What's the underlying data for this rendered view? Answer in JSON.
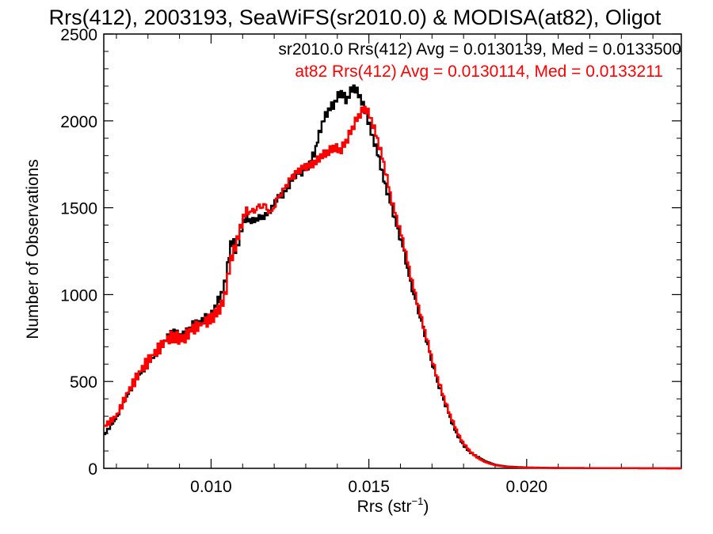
{
  "chart_data": {
    "type": "line",
    "title": "Rrs(412), 2003193, SeaWiFS(sr2010.0) & MODISA(at82), Oligot",
    "xlabel_main": "Rrs (str",
    "xlabel_sup": "−1",
    "xlabel_close": ")",
    "ylabel": "Number of Observations",
    "xlim": [
      0.0066,
      0.0249
    ],
    "ylim": [
      0,
      2500
    ],
    "x_ticks": [
      0.01,
      0.015,
      0.02
    ],
    "x_tick_labels": [
      "0.010",
      "0.015",
      "0.020"
    ],
    "y_ticks": [
      0,
      500,
      1000,
      1500,
      2000,
      2500
    ],
    "y_tick_labels": [
      "0",
      "500",
      "1000",
      "1500",
      "2000",
      "2500"
    ],
    "annotations": [
      {
        "text": "sr2010.0 Rrs(412) Avg = 0.0130139, Med = 0.0133500",
        "color": "#000000"
      },
      {
        "text": "at82 Rrs(412) Avg = 0.0130114, Med = 0.0133211",
        "color": "#ff0000"
      }
    ],
    "series": [
      {
        "name": "sr2010.0",
        "color": "#000000",
        "points": [
          [
            0.0066,
            190
          ],
          [
            0.007,
            290
          ],
          [
            0.0074,
            440
          ],
          [
            0.0078,
            560
          ],
          [
            0.0082,
            650
          ],
          [
            0.0086,
            750
          ],
          [
            0.0088,
            780
          ],
          [
            0.0091,
            760
          ],
          [
            0.0094,
            820
          ],
          [
            0.0098,
            860
          ],
          [
            0.01,
            870
          ],
          [
            0.0102,
            950
          ],
          [
            0.0104,
            1030
          ],
          [
            0.0105,
            1120
          ],
          [
            0.0106,
            1270
          ],
          [
            0.0107,
            1310
          ],
          [
            0.0108,
            1240
          ],
          [
            0.0109,
            1320
          ],
          [
            0.011,
            1400
          ],
          [
            0.0111,
            1440
          ],
          [
            0.0113,
            1420
          ],
          [
            0.0115,
            1440
          ],
          [
            0.0117,
            1450
          ],
          [
            0.0119,
            1490
          ],
          [
            0.0121,
            1560
          ],
          [
            0.0123,
            1580
          ],
          [
            0.0125,
            1640
          ],
          [
            0.0127,
            1700
          ],
          [
            0.0129,
            1710
          ],
          [
            0.0131,
            1750
          ],
          [
            0.0133,
            1830
          ],
          [
            0.0135,
            1980
          ],
          [
            0.0137,
            2060
          ],
          [
            0.0139,
            2100
          ],
          [
            0.0141,
            2170
          ],
          [
            0.0143,
            2120
          ],
          [
            0.0145,
            2200
          ],
          [
            0.0147,
            2150
          ],
          [
            0.0149,
            2050
          ],
          [
            0.0151,
            1920
          ],
          [
            0.0153,
            1800
          ],
          [
            0.0155,
            1640
          ],
          [
            0.0157,
            1520
          ],
          [
            0.0159,
            1380
          ],
          [
            0.0161,
            1260
          ],
          [
            0.0163,
            1080
          ],
          [
            0.0165,
            950
          ],
          [
            0.0167,
            820
          ],
          [
            0.0169,
            680
          ],
          [
            0.0171,
            540
          ],
          [
            0.0173,
            430
          ],
          [
            0.0175,
            330
          ],
          [
            0.0177,
            230
          ],
          [
            0.0179,
            160
          ],
          [
            0.0181,
            110
          ],
          [
            0.0183,
            80
          ],
          [
            0.0185,
            60
          ],
          [
            0.0187,
            40
          ],
          [
            0.019,
            20
          ],
          [
            0.0194,
            10
          ],
          [
            0.02,
            5
          ],
          [
            0.021,
            2
          ],
          [
            0.0249,
            0
          ]
        ]
      },
      {
        "name": "at82",
        "color": "#ff0000",
        "points": [
          [
            0.0066,
            240
          ],
          [
            0.007,
            300
          ],
          [
            0.0074,
            450
          ],
          [
            0.0078,
            570
          ],
          [
            0.0082,
            660
          ],
          [
            0.0086,
            740
          ],
          [
            0.0088,
            760
          ],
          [
            0.0091,
            740
          ],
          [
            0.0094,
            800
          ],
          [
            0.0098,
            840
          ],
          [
            0.01,
            860
          ],
          [
            0.0102,
            900
          ],
          [
            0.0104,
            960
          ],
          [
            0.0105,
            1060
          ],
          [
            0.0106,
            1180
          ],
          [
            0.0107,
            1240
          ],
          [
            0.0108,
            1290
          ],
          [
            0.0109,
            1360
          ],
          [
            0.011,
            1420
          ],
          [
            0.0111,
            1480
          ],
          [
            0.0113,
            1470
          ],
          [
            0.0115,
            1500
          ],
          [
            0.0117,
            1510
          ],
          [
            0.0119,
            1460
          ],
          [
            0.0121,
            1550
          ],
          [
            0.0123,
            1600
          ],
          [
            0.0125,
            1660
          ],
          [
            0.0127,
            1700
          ],
          [
            0.0129,
            1730
          ],
          [
            0.0131,
            1740
          ],
          [
            0.0133,
            1760
          ],
          [
            0.0135,
            1800
          ],
          [
            0.0137,
            1820
          ],
          [
            0.0139,
            1850
          ],
          [
            0.0141,
            1830
          ],
          [
            0.0143,
            1890
          ],
          [
            0.0145,
            1970
          ],
          [
            0.0147,
            2040
          ],
          [
            0.0149,
            2080
          ],
          [
            0.0151,
            2000
          ],
          [
            0.0153,
            1880
          ],
          [
            0.0155,
            1740
          ],
          [
            0.0157,
            1560
          ],
          [
            0.0159,
            1430
          ],
          [
            0.0161,
            1300
          ],
          [
            0.0163,
            1130
          ],
          [
            0.0165,
            980
          ],
          [
            0.0167,
            840
          ],
          [
            0.0169,
            700
          ],
          [
            0.0171,
            560
          ],
          [
            0.0173,
            450
          ],
          [
            0.0175,
            340
          ],
          [
            0.0177,
            250
          ],
          [
            0.0179,
            170
          ],
          [
            0.0181,
            120
          ],
          [
            0.0183,
            80
          ],
          [
            0.0185,
            55
          ],
          [
            0.0187,
            35
          ],
          [
            0.019,
            18
          ],
          [
            0.0194,
            8
          ],
          [
            0.02,
            4
          ],
          [
            0.021,
            2
          ],
          [
            0.0249,
            0
          ]
        ]
      }
    ]
  }
}
